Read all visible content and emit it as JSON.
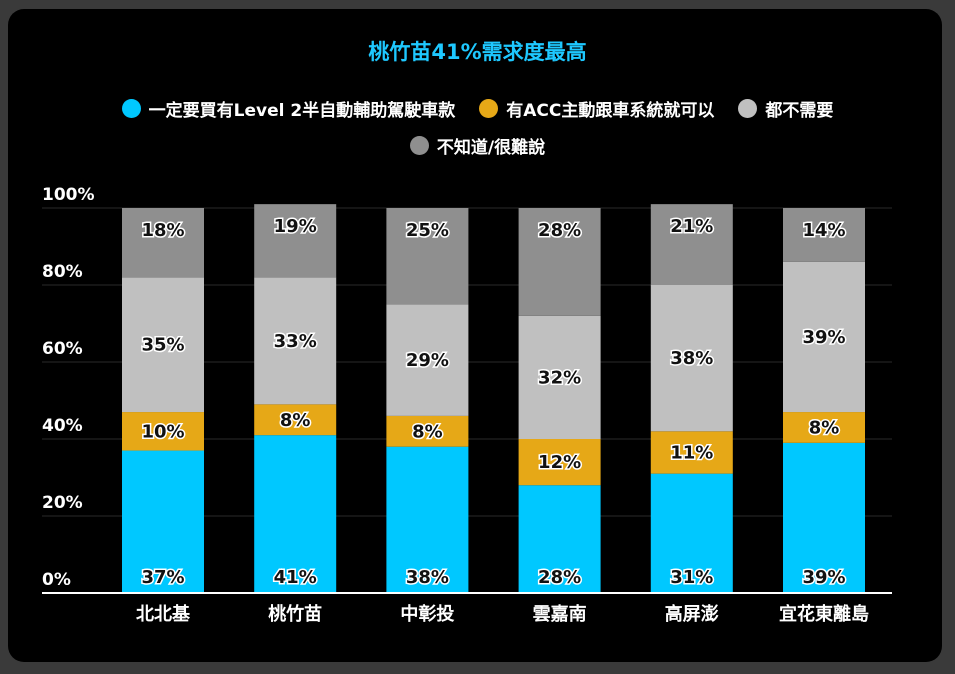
{
  "chart_data": {
    "type": "bar",
    "stacked": true,
    "title": "桃竹苗41%需求度最高",
    "categories": [
      "北北基",
      "桃竹苗",
      "中彰投",
      "雲嘉南",
      "高屏澎",
      "宜花東離島"
    ],
    "series": [
      {
        "name": "一定要買有Level 2半自動輔助駕駛車款",
        "color": "#00c8ff",
        "values": [
          37,
          41,
          38,
          28,
          31,
          39
        ]
      },
      {
        "name": "有ACC主動跟車系統就可以",
        "color": "#e6a817",
        "values": [
          10,
          8,
          8,
          12,
          11,
          8
        ]
      },
      {
        "name": "都不需要",
        "color": "#c0c0c0",
        "values": [
          35,
          33,
          29,
          32,
          38,
          39
        ]
      },
      {
        "name": "不知道/很難說",
        "color": "#8f8f8f",
        "values": [
          18,
          19,
          25,
          28,
          21,
          14
        ]
      }
    ],
    "yticks": [
      "0%",
      "20%",
      "40%",
      "60%",
      "80%",
      "100%"
    ],
    "ylim": [
      0,
      100
    ],
    "legend_position": "top",
    "grid": true
  }
}
